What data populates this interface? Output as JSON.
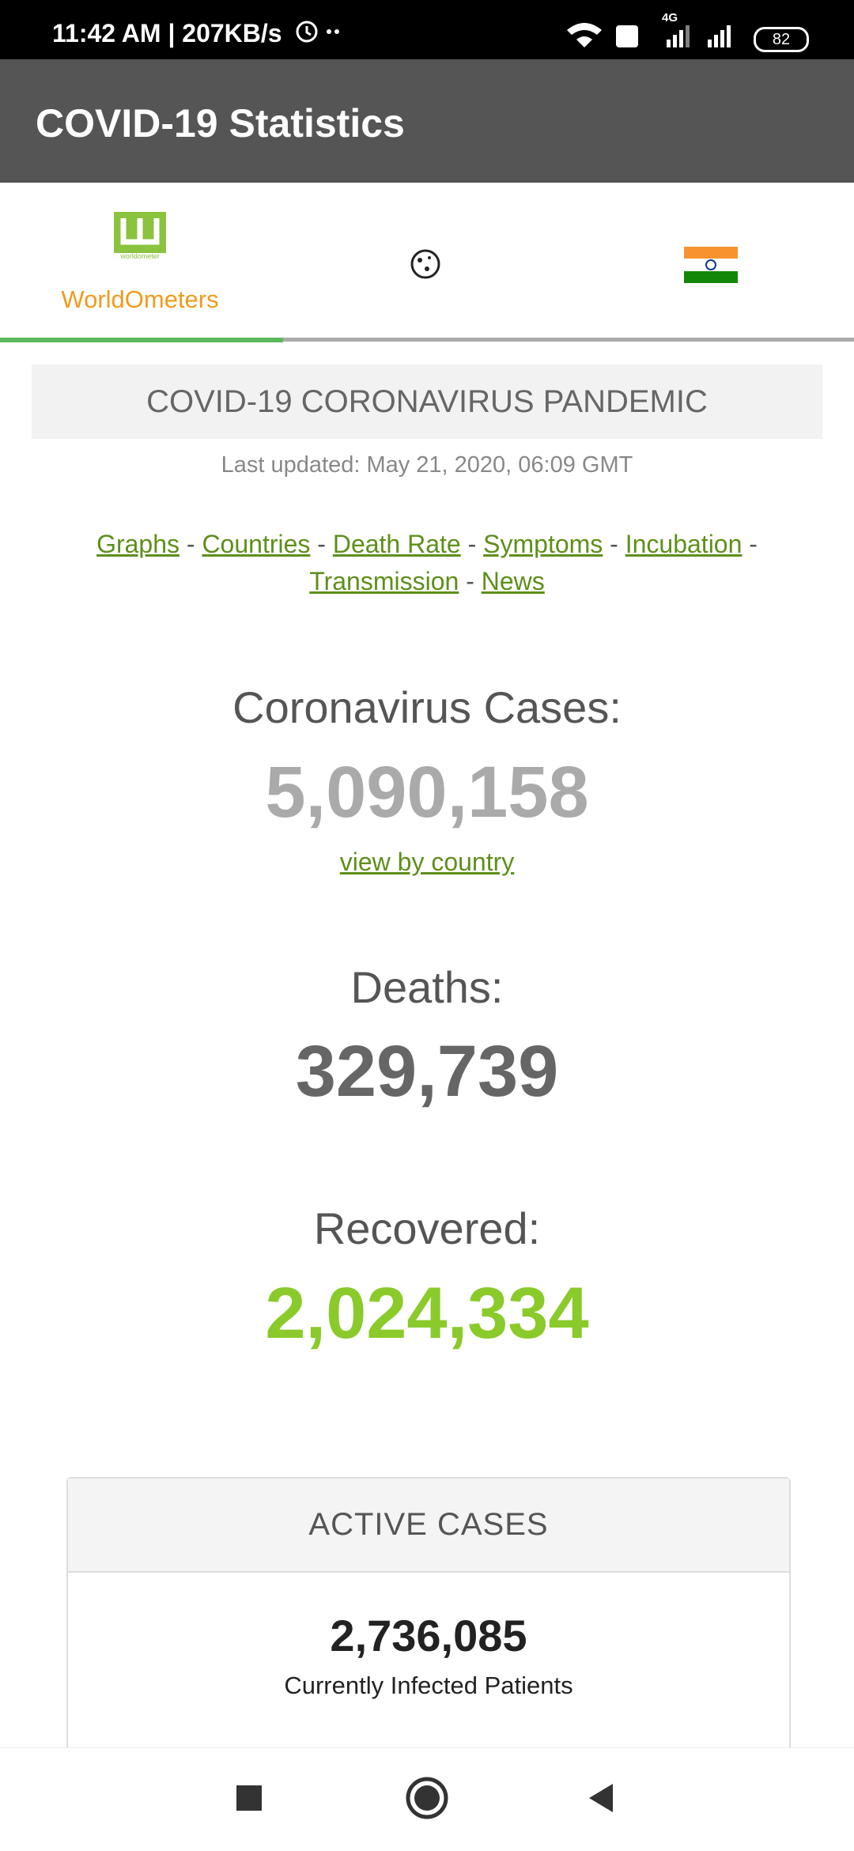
{
  "status_bar": {
    "time": "11:42 AM | 207KB/s",
    "network": "4G",
    "battery": "82"
  },
  "app_bar": {
    "title": "COVID-19 Statistics"
  },
  "tabs": {
    "logo_caption": "worldometer",
    "items": [
      "WorldOmeters"
    ]
  },
  "banner": {
    "title": "COVID-19 CORONAVIRUS PANDEMIC",
    "updated": "Last updated: May 21, 2020, 06:09 GMT"
  },
  "links": {
    "items": [
      "Graphs",
      "Countries",
      "Death Rate",
      "Symptoms",
      "Incubation",
      "Transmission",
      "News"
    ],
    "separator": "-"
  },
  "stats": [
    {
      "label": "Coronavirus Cases:",
      "value": "5,090,158",
      "link": "view by country"
    },
    {
      "label": "Deaths:",
      "value": "329,739"
    },
    {
      "label": "Recovered:",
      "value": "2,024,334"
    }
  ],
  "active": {
    "title": "ACTIVE CASES",
    "value": "2,736,085",
    "caption": "Currently Infected Patients"
  }
}
